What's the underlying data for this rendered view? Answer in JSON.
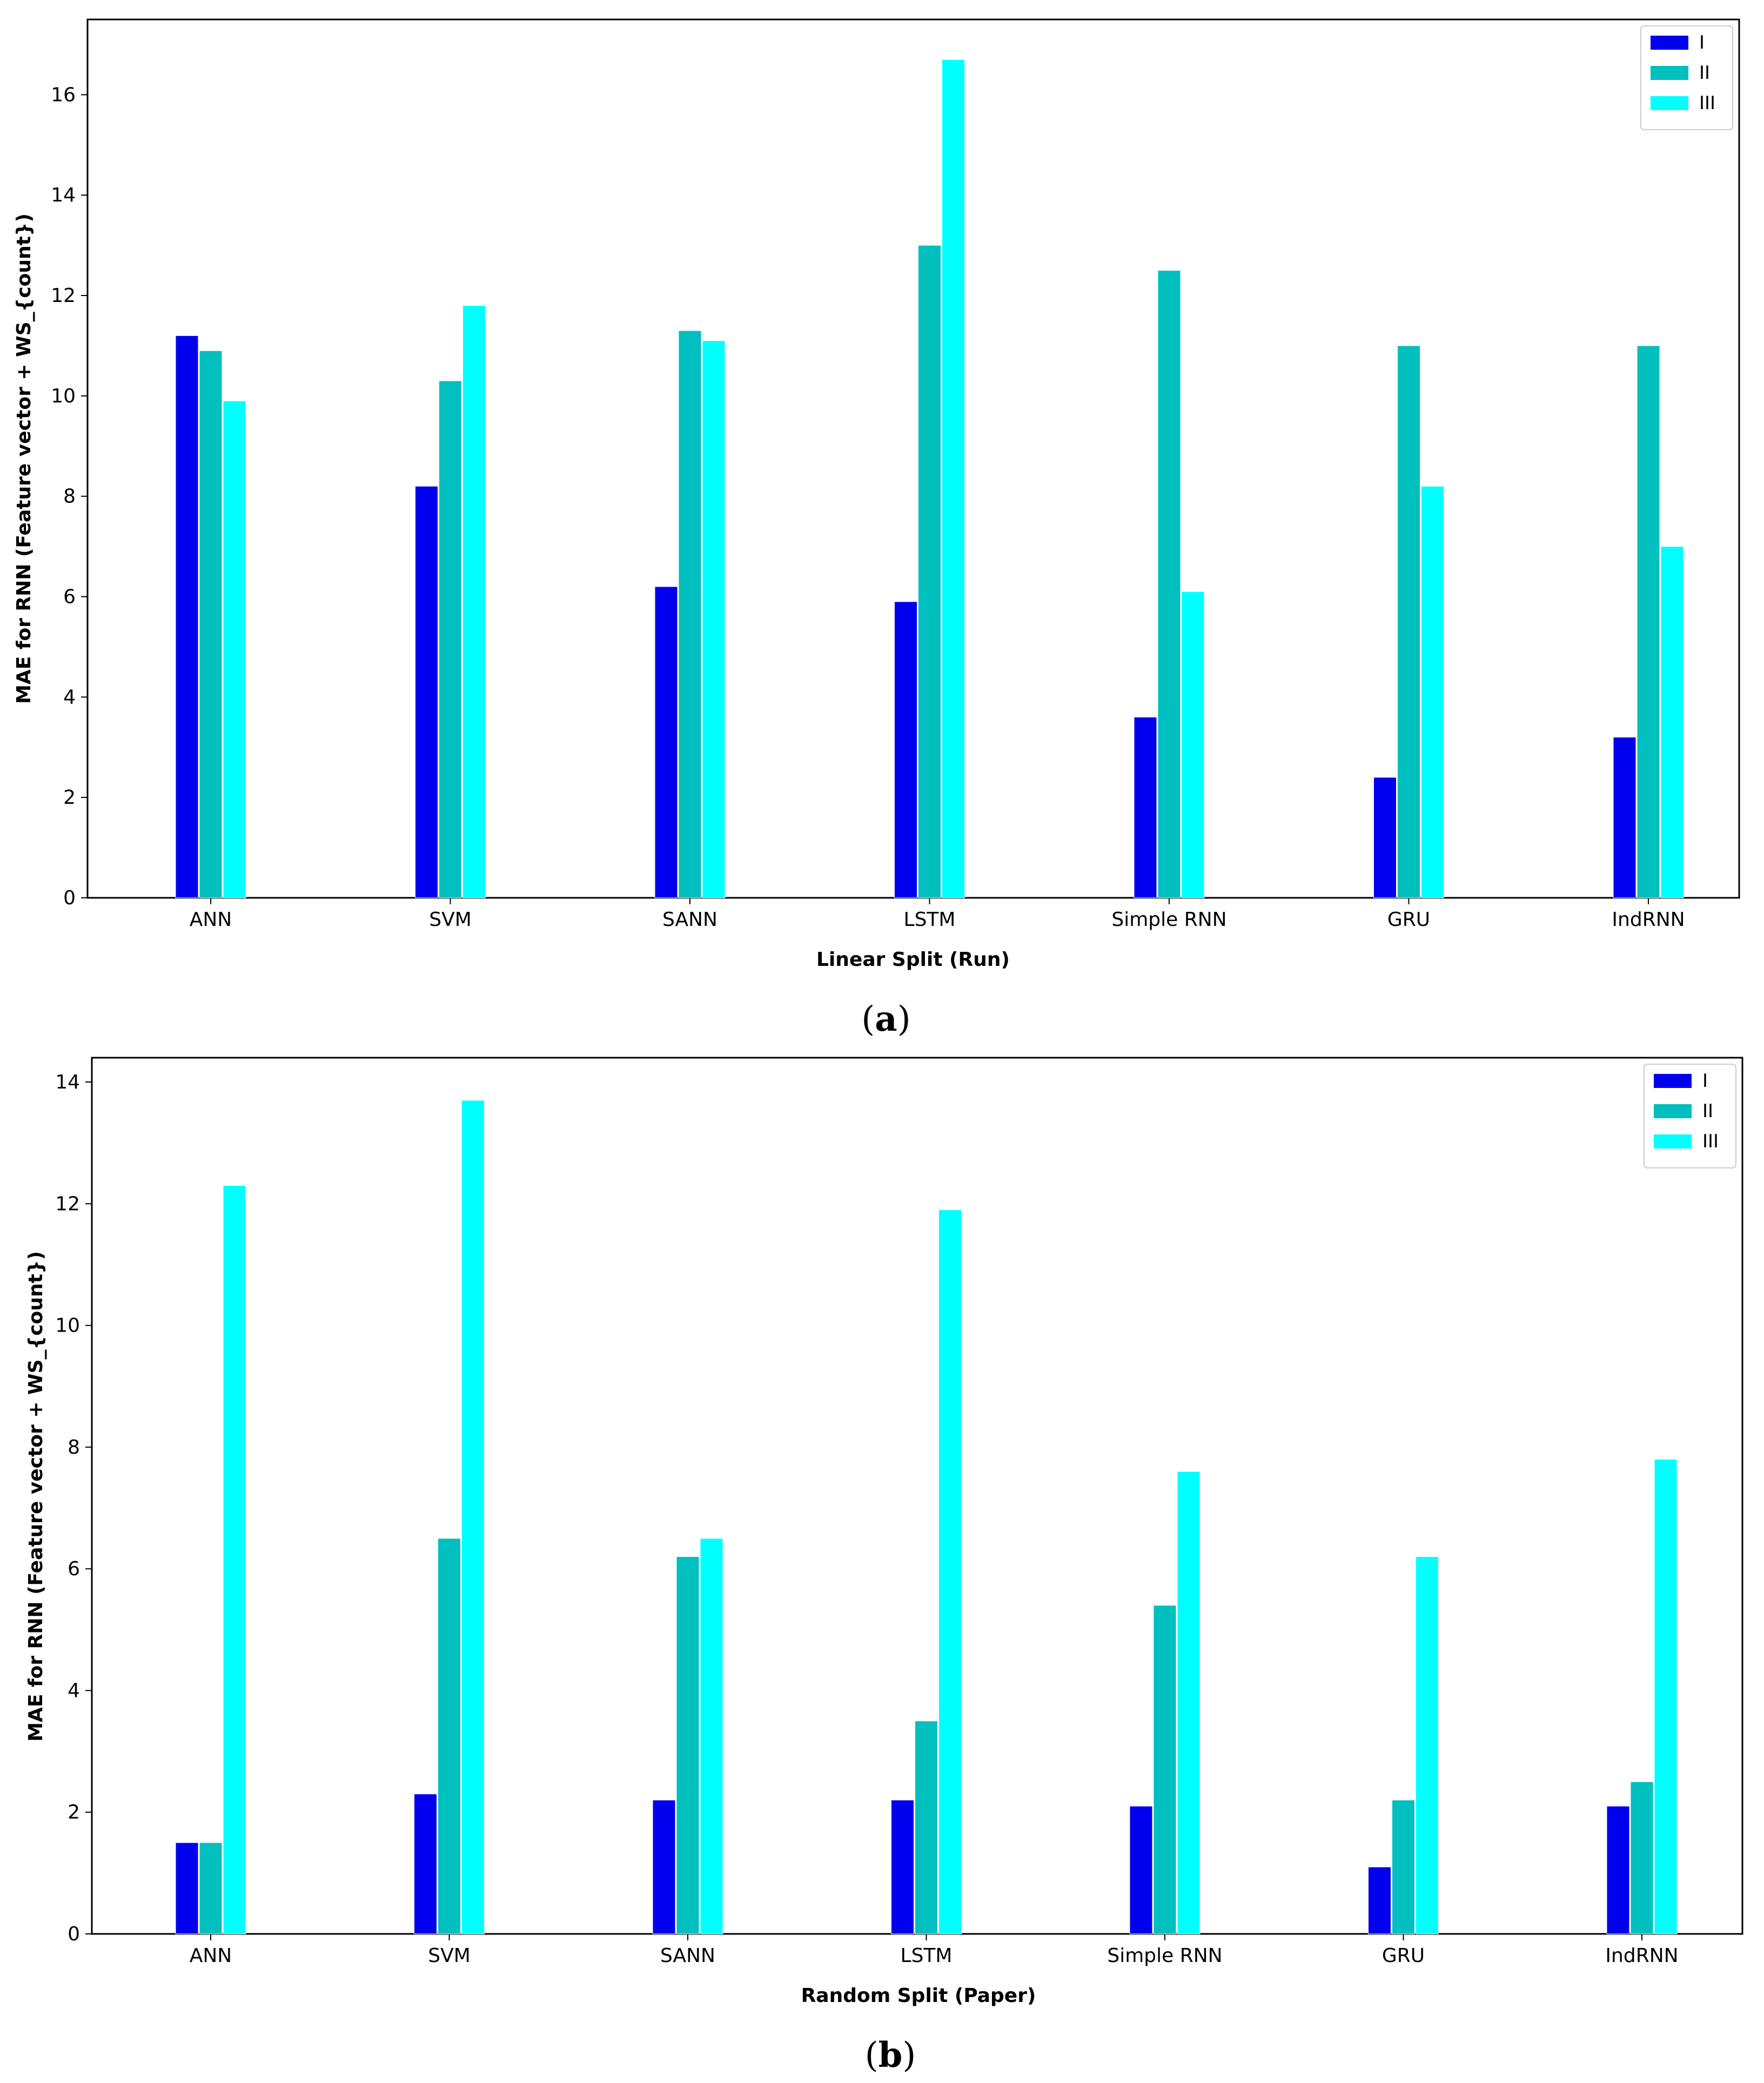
{
  "colors": {
    "I": "#0000ee",
    "II": "#00bfbf",
    "III": "#00ffff"
  },
  "chart_data": [
    {
      "type": "bar",
      "panel_label": "a",
      "categories": [
        "ANN",
        "SVM",
        "SANN",
        "LSTM",
        "Simple RNN",
        "GRU",
        "IndRNN"
      ],
      "series": [
        {
          "name": "I",
          "values": [
            11.2,
            8.2,
            6.2,
            5.9,
            3.6,
            2.4,
            3.2
          ]
        },
        {
          "name": "II",
          "values": [
            10.9,
            10.3,
            11.3,
            13.0,
            12.5,
            11.0,
            11.0
          ]
        },
        {
          "name": "III",
          "values": [
            9.9,
            11.8,
            11.1,
            16.7,
            6.1,
            8.2,
            7.0
          ]
        }
      ],
      "yticks": [
        0,
        2,
        4,
        6,
        8,
        10,
        12,
        14,
        16
      ],
      "ylim": [
        0,
        17.5
      ],
      "xlabel": "Linear Split (Run)",
      "ylabel": "MAE for RNN (Feature vector + WS_{count})",
      "legend": "top-right",
      "grid": false
    },
    {
      "type": "bar",
      "panel_label": "b",
      "categories": [
        "ANN",
        "SVM",
        "SANN",
        "LSTM",
        "Simple RNN",
        "GRU",
        "IndRNN"
      ],
      "series": [
        {
          "name": "I",
          "values": [
            1.5,
            2.3,
            2.2,
            2.2,
            2.1,
            1.1,
            2.1
          ]
        },
        {
          "name": "II",
          "values": [
            1.5,
            6.5,
            6.2,
            3.5,
            5.4,
            2.2,
            2.5
          ]
        },
        {
          "name": "III",
          "values": [
            12.3,
            13.7,
            6.5,
            11.9,
            7.6,
            6.2,
            7.8
          ]
        }
      ],
      "yticks": [
        0,
        2,
        4,
        6,
        8,
        10,
        12,
        14
      ],
      "ylim": [
        0,
        14.4
      ],
      "xlabel": "Random Split (Paper)",
      "ylabel": "MAE for RNN (Feature vector + WS_{count})",
      "legend": "top-right",
      "grid": false
    }
  ]
}
